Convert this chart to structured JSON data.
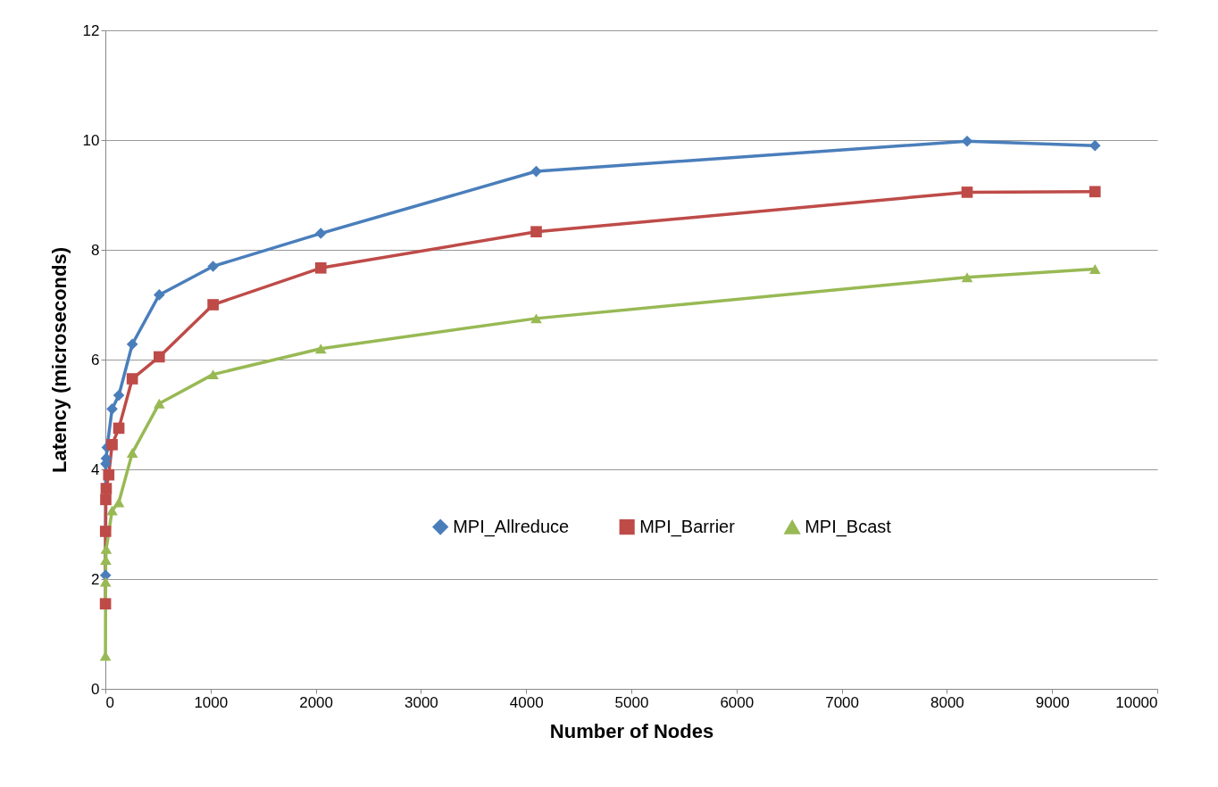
{
  "chart_data": {
    "type": "line",
    "xlabel": "Number of Nodes",
    "ylabel": "Latency (microseconds)",
    "xlim": [
      0,
      10000
    ],
    "xticks": [
      0,
      1000,
      2000,
      3000,
      4000,
      5000,
      6000,
      7000,
      8000,
      9000,
      10000
    ],
    "ylim": [
      0,
      12
    ],
    "yticks": [
      0,
      2,
      4,
      6,
      8,
      10,
      12
    ],
    "grid": "y",
    "legend": "right",
    "line_style": "solid",
    "series": [
      {
        "name": "MPI_Allreduce",
        "color": "#4a7ebb",
        "marker": "diamond",
        "x": [
          2,
          4,
          8,
          16,
          64,
          128,
          256,
          512,
          1024,
          2048,
          4096,
          8192,
          9408
        ],
        "values": [
          2.07,
          4.1,
          4.2,
          4.4,
          5.1,
          5.35,
          6.28,
          7.18,
          7.7,
          8.3,
          9.43,
          9.98,
          9.9
        ]
      },
      {
        "name": "MPI_Barrier",
        "color": "#be4b48",
        "marker": "square",
        "x": [
          1,
          2,
          4,
          8,
          32,
          64,
          128,
          256,
          512,
          1024,
          2048,
          4096,
          8192,
          9408
        ],
        "values": [
          1.55,
          2.87,
          3.45,
          3.65,
          3.9,
          4.45,
          4.75,
          5.65,
          6.05,
          7.0,
          7.67,
          8.33,
          9.05,
          9.06
        ]
      },
      {
        "name": "MPI_Bcast",
        "color": "#98b954",
        "marker": "triangle",
        "x": [
          1,
          2,
          4,
          8,
          64,
          128,
          256,
          512,
          1024,
          2048,
          4096,
          8192,
          9408
        ],
        "values": [
          0.6,
          1.95,
          2.35,
          2.55,
          3.25,
          3.4,
          4.3,
          5.2,
          5.73,
          6.2,
          6.75,
          7.5,
          7.65
        ]
      }
    ]
  }
}
